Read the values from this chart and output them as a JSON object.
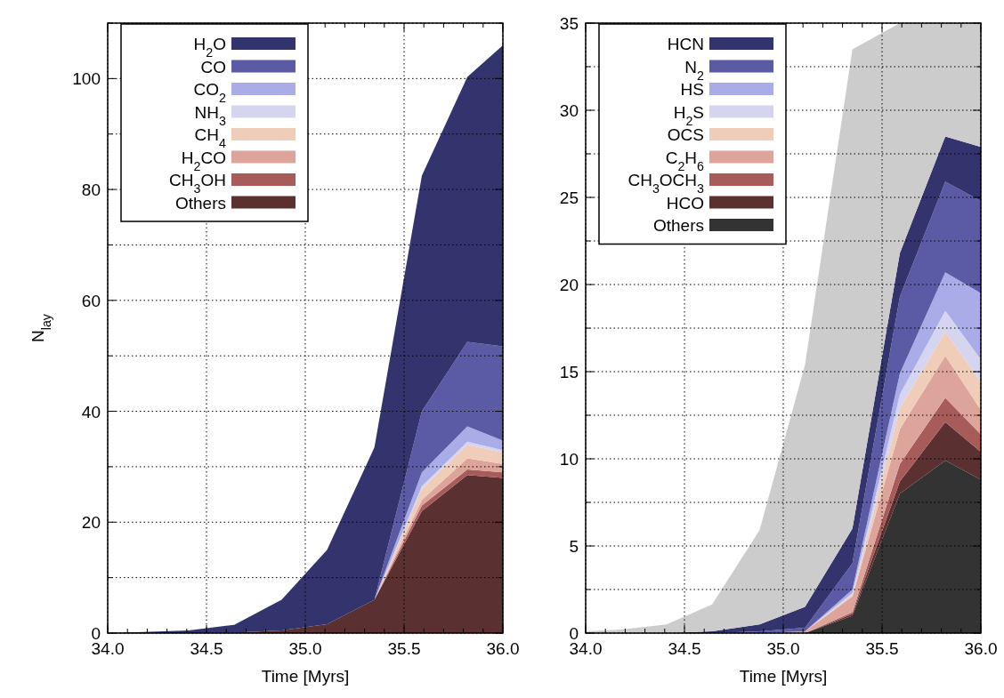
{
  "chart_data": [
    {
      "type": "area",
      "stacked": true,
      "xlabel": "Time [Myrs]",
      "ylabel": "N$_{lay}$",
      "legend": "top left",
      "grid": true,
      "x": [
        34.0,
        34.18,
        34.41,
        34.64,
        34.88,
        35.11,
        35.35,
        35.59,
        35.82,
        36.0
      ],
      "xlim": [
        34.0,
        36.0
      ],
      "xticks": [
        {
          "value": 34.0,
          "label": "34.0"
        },
        {
          "value": 34.1,
          "label": null
        },
        {
          "value": 34.2,
          "label": null
        },
        {
          "value": 34.3,
          "label": null
        },
        {
          "value": 34.4,
          "label": null
        },
        {
          "value": 34.5,
          "label": "34.5"
        },
        {
          "value": 34.6,
          "label": null
        },
        {
          "value": 34.7,
          "label": null
        },
        {
          "value": 34.8,
          "label": null
        },
        {
          "value": 34.9,
          "label": null
        },
        {
          "value": 35.0,
          "label": "35.0"
        },
        {
          "value": 35.1,
          "label": null
        },
        {
          "value": 35.2,
          "label": null
        },
        {
          "value": 35.3,
          "label": null
        },
        {
          "value": 35.4,
          "label": null
        },
        {
          "value": 35.5,
          "label": "35.5"
        },
        {
          "value": 35.6,
          "label": null
        },
        {
          "value": 35.7,
          "label": null
        },
        {
          "value": 35.8,
          "label": null
        },
        {
          "value": 35.9,
          "label": null
        },
        {
          "value": 36.0,
          "label": "36.0"
        }
      ],
      "ylim": [
        0,
        110
      ],
      "yticks": [
        0,
        {
          "value": 10,
          "label": null
        },
        20,
        {
          "value": 30,
          "label": null
        },
        40,
        {
          "value": 50,
          "label": null
        },
        60,
        {
          "value": 70,
          "label": null
        },
        80,
        {
          "value": 90,
          "label": null
        },
        100,
        {
          "value": 110,
          "label": null
        }
      ],
      "series": [
        {
          "name": "Others",
          "color": "#5a3030",
          "values": [
            0,
            0,
            0,
            0.1,
            0.5,
            1.6,
            6,
            22,
            28.5,
            28
          ]
        },
        {
          "name": "CH$_{3}$OH",
          "color": "#a85c5a",
          "values": [
            0,
            0,
            0,
            0,
            0,
            0,
            0,
            1,
            1,
            1
          ]
        },
        {
          "name": "H$_{2}$CO",
          "color": "#dda49c",
          "values": [
            0,
            0,
            0,
            0,
            0,
            0,
            0,
            1,
            2,
            1.5
          ]
        },
        {
          "name": "CH$_{4}$",
          "color": "#efcdb9",
          "values": [
            0,
            0,
            0,
            0,
            0,
            0,
            0,
            2,
            2.5,
            2
          ]
        },
        {
          "name": "NH$_{3}$",
          "color": "#d5d5f0",
          "values": [
            0,
            0,
            0,
            0,
            0,
            0,
            0,
            0.5,
            0.5,
            0.5
          ]
        },
        {
          "name": "CO$_{2}$",
          "color": "#a9ace6",
          "values": [
            0,
            0,
            0,
            0,
            0,
            0,
            0,
            2.5,
            2.8,
            1.7
          ]
        },
        {
          "name": "CO",
          "color": "#5b5ba5",
          "values": [
            0,
            0,
            0,
            0,
            0,
            0,
            0,
            11,
            15.2,
            17
          ]
        },
        {
          "name": "H$_{2}$O",
          "color": "#33336e",
          "values": [
            0,
            0.2,
            0.5,
            1.4,
            5.5,
            13.4,
            27.5,
            42.5,
            47.8,
            54.3
          ]
        }
      ]
    },
    {
      "type": "area",
      "stacked": true,
      "xlabel": "Time [Myrs]",
      "legend": "top left",
      "grid": true,
      "x": [
        34.0,
        34.18,
        34.41,
        34.64,
        34.88,
        35.11,
        35.35,
        35.59,
        35.82,
        36.0
      ],
      "xlim": [
        34.0,
        36.0
      ],
      "xticks": [
        {
          "value": 34.0,
          "label": "34.0"
        },
        {
          "value": 34.1,
          "label": null
        },
        {
          "value": 34.2,
          "label": null
        },
        {
          "value": 34.3,
          "label": null
        },
        {
          "value": 34.4,
          "label": null
        },
        {
          "value": 34.5,
          "label": "34.5"
        },
        {
          "value": 34.6,
          "label": null
        },
        {
          "value": 34.7,
          "label": null
        },
        {
          "value": 34.8,
          "label": null
        },
        {
          "value": 34.9,
          "label": null
        },
        {
          "value": 35.0,
          "label": "35.0"
        },
        {
          "value": 35.1,
          "label": null
        },
        {
          "value": 35.2,
          "label": null
        },
        {
          "value": 35.3,
          "label": null
        },
        {
          "value": 35.4,
          "label": null
        },
        {
          "value": 35.5,
          "label": "35.5"
        },
        {
          "value": 35.6,
          "label": null
        },
        {
          "value": 35.7,
          "label": null
        },
        {
          "value": 35.8,
          "label": null
        },
        {
          "value": 35.9,
          "label": null
        },
        {
          "value": 36.0,
          "label": "36.0"
        }
      ],
      "ylim": [
        0,
        35
      ],
      "yticks": [
        0,
        {
          "value": 2.5,
          "label": null
        },
        5,
        {
          "value": 7.5,
          "label": null
        },
        10,
        {
          "value": 12.5,
          "label": null
        },
        15,
        {
          "value": 17.5,
          "label": null
        },
        20,
        {
          "value": 22.5,
          "label": null
        },
        25,
        {
          "value": 27.5,
          "label": null
        },
        30,
        {
          "value": 32.5,
          "label": null
        },
        35
      ],
      "series": [
        {
          "name": "Others",
          "color": "#333333",
          "values": [
            0,
            0,
            0,
            0,
            0,
            0,
            1.0,
            8.0,
            9.9,
            8.8
          ]
        },
        {
          "name": "HCO",
          "color": "#5a3030",
          "values": [
            0,
            0,
            0,
            0,
            0,
            0,
            0.1,
            0.7,
            2.2,
            1.6
          ]
        },
        {
          "name": "CH$_{3}$OCH$_{3}$",
          "color": "#a85c5a",
          "values": [
            0,
            0,
            0,
            0,
            0,
            0,
            0.1,
            1.0,
            1.4,
            1.0
          ]
        },
        {
          "name": "C$_{2}$H$_{6}$",
          "color": "#dda49c",
          "values": [
            0,
            0,
            0,
            0,
            0,
            0.1,
            0.9,
            2.0,
            2.4,
            1.4
          ]
        },
        {
          "name": "OCS",
          "color": "#efcdb9",
          "values": [
            0,
            0,
            0,
            0,
            0,
            0,
            0.1,
            1.2,
            1.4,
            1.6
          ]
        },
        {
          "name": "H$_{2}$S",
          "color": "#d5d5f0",
          "values": [
            0,
            0,
            0,
            0,
            0,
            0,
            0.1,
            0.8,
            1.2,
            1.3
          ]
        },
        {
          "name": "HS",
          "color": "#a9ace6",
          "values": [
            0,
            0,
            0,
            0,
            0,
            0,
            0.2,
            1.2,
            2.2,
            3.8
          ]
        },
        {
          "name": "N$_{2}$",
          "color": "#5b5ba5",
          "values": [
            0,
            0,
            0,
            0,
            0.1,
            0.2,
            1.5,
            4.4,
            5.2,
            5.3
          ]
        },
        {
          "name": "HCN",
          "color": "#33336e",
          "values": [
            0,
            0,
            0,
            0.1,
            0.4,
            1.2,
            2.0,
            2.5,
            2.6,
            3.1
          ]
        },
        {
          "color": "#cccccc",
          "values": [
            0.1,
            0.2,
            0.5,
            1.55,
            5.4,
            13.9,
            27.5,
            13.2,
            6.5,
            7.1
          ]
        }
      ]
    }
  ]
}
